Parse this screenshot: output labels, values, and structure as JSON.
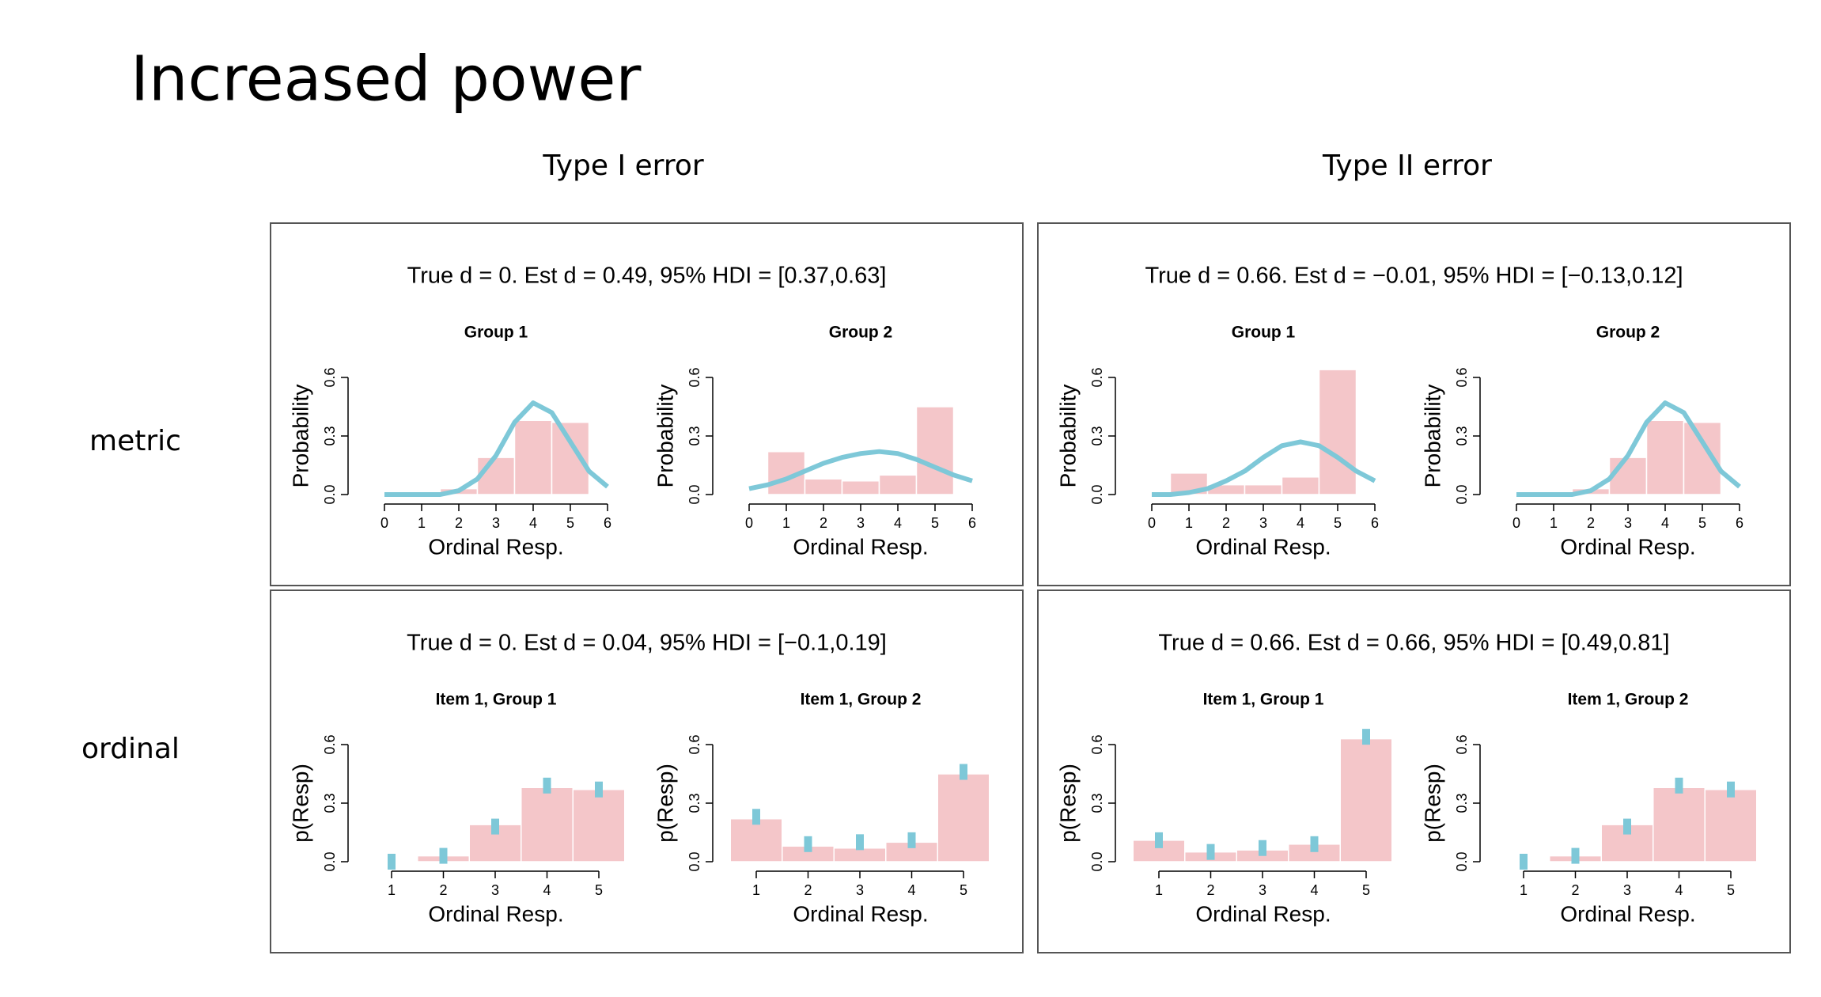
{
  "title": "Increased power",
  "columns": [
    "Type I error",
    "Type II error"
  ],
  "rows": [
    "metric",
    "ordinal"
  ],
  "panels": [
    {
      "title": "True d = 0. Est d = 0.49, 95% HDI = [0.37,0.63]"
    },
    {
      "title": "True d = 0.66. Est d = −0.01, 95% HDI = [−0.13,0.12]"
    },
    {
      "title": "True d = 0. Est d = 0.04, 95% HDI = [−0.1,0.19]"
    },
    {
      "title": "True d = 0.66. Est d = 0.66, 95% HDI = [0.49,0.81]"
    }
  ],
  "chart_data": [
    {
      "type": "histogram",
      "title": "Group 1",
      "x_label": "Ordinal Resp.",
      "y_label": "Probability",
      "bins": [
        0.5,
        1.5,
        2.5,
        3.5,
        4.5,
        5.5
      ],
      "values": [
        0,
        0.03,
        0.19,
        0.38,
        0.37
      ],
      "color": "#f4c6c9",
      "curve": {
        "color": "#7ec8d8",
        "x": [
          0,
          0.5,
          1,
          1.5,
          2,
          2.5,
          3,
          3.5,
          4,
          4.5,
          5,
          5.5,
          6
        ],
        "y": [
          0,
          0,
          0,
          0,
          0.02,
          0.08,
          0.2,
          0.37,
          0.47,
          0.42,
          0.27,
          0.12,
          0.04
        ]
      },
      "xlim": [
        0,
        6
      ],
      "xticks": [
        0,
        1,
        2,
        3,
        4,
        5,
        6
      ],
      "ylim": [
        0,
        0.7
      ],
      "yticks": [
        {
          "value": 0,
          "label": "0.0"
        },
        0.3,
        0.6
      ]
    },
    {
      "type": "histogram",
      "title": "Group 2",
      "x_label": "Ordinal Resp.",
      "y_label": "Probability",
      "bins": [
        0.5,
        1.5,
        2.5,
        3.5,
        4.5,
        5.5
      ],
      "values": [
        0.22,
        0.08,
        0.07,
        0.1,
        0.45
      ],
      "color": "#f4c6c9",
      "curve": {
        "color": "#7ec8d8",
        "x": [
          0,
          0.5,
          1,
          1.5,
          2,
          2.5,
          3,
          3.5,
          4,
          4.5,
          5,
          5.5,
          6
        ],
        "y": [
          0.03,
          0.05,
          0.08,
          0.12,
          0.16,
          0.19,
          0.21,
          0.22,
          0.21,
          0.18,
          0.14,
          0.1,
          0.07
        ]
      },
      "xlim": [
        0,
        6
      ],
      "xticks": [
        0,
        1,
        2,
        3,
        4,
        5,
        6
      ],
      "ylim": [
        0,
        0.7
      ],
      "yticks": [
        {
          "value": 0,
          "label": "0.0"
        },
        0.3,
        0.6
      ]
    },
    {
      "type": "histogram",
      "title": "Group 1",
      "x_label": "Ordinal Resp.",
      "y_label": "Probability",
      "bins": [
        0.5,
        1.5,
        2.5,
        3.5,
        4.5,
        5.5
      ],
      "values": [
        0.11,
        0.05,
        0.05,
        0.09,
        0.64
      ],
      "color": "#f4c6c9",
      "curve": {
        "color": "#7ec8d8",
        "x": [
          0,
          0.5,
          1,
          1.5,
          2,
          2.5,
          3,
          3.5,
          4,
          4.5,
          5,
          5.5,
          6
        ],
        "y": [
          0,
          0,
          0.01,
          0.03,
          0.07,
          0.12,
          0.19,
          0.25,
          0.27,
          0.25,
          0.19,
          0.12,
          0.07
        ]
      },
      "xlim": [
        0,
        6
      ],
      "xticks": [
        0,
        1,
        2,
        3,
        4,
        5,
        6
      ],
      "ylim": [
        0,
        0.7
      ],
      "yticks": [
        {
          "value": 0,
          "label": "0.0"
        },
        0.3,
        0.6
      ]
    },
    {
      "type": "histogram",
      "title": "Group 2",
      "x_label": "Ordinal Resp.",
      "y_label": "Probability",
      "bins": [
        0.5,
        1.5,
        2.5,
        3.5,
        4.5,
        5.5
      ],
      "values": [
        0,
        0.03,
        0.19,
        0.38,
        0.37
      ],
      "color": "#f4c6c9",
      "curve": {
        "color": "#7ec8d8",
        "x": [
          0,
          0.5,
          1,
          1.5,
          2,
          2.5,
          3,
          3.5,
          4,
          4.5,
          5,
          5.5,
          6
        ],
        "y": [
          0,
          0,
          0,
          0,
          0.02,
          0.08,
          0.2,
          0.37,
          0.47,
          0.42,
          0.27,
          0.12,
          0.04
        ]
      },
      "xlim": [
        0,
        6
      ],
      "xticks": [
        0,
        1,
        2,
        3,
        4,
        5,
        6
      ],
      "ylim": [
        0,
        0.7
      ],
      "yticks": [
        {
          "value": 0,
          "label": "0.0"
        },
        0.3,
        0.6
      ]
    },
    {
      "type": "bar",
      "title": "Item 1, Group 1",
      "x_label": "Ordinal Resp.",
      "y_label": "p(Resp)",
      "categories": [
        "1",
        "2",
        "3",
        "4",
        "5"
      ],
      "values": [
        0,
        0.03,
        0.19,
        0.38,
        0.37
      ],
      "color": "#f4c6c9",
      "points": [
        0,
        0.03,
        0.18,
        0.39,
        0.37
      ],
      "point_color": "#7ec8d8",
      "ylim": [
        0,
        0.7
      ],
      "yticks": [
        {
          "value": 0,
          "label": "0.0"
        },
        0.3,
        0.6
      ]
    },
    {
      "type": "bar",
      "title": "Item 1, Group 2",
      "x_label": "Ordinal Resp.",
      "y_label": "p(Resp)",
      "categories": [
        "1",
        "2",
        "3",
        "4",
        "5"
      ],
      "values": [
        0.22,
        0.08,
        0.07,
        0.1,
        0.45
      ],
      "color": "#f4c6c9",
      "points": [
        0.23,
        0.09,
        0.1,
        0.11,
        0.46
      ],
      "point_color": "#7ec8d8",
      "ylim": [
        0,
        0.7
      ],
      "yticks": [
        {
          "value": 0,
          "label": "0.0"
        },
        0.3,
        0.6
      ]
    },
    {
      "type": "bar",
      "title": "Item 1, Group 1",
      "x_label": "Ordinal Resp.",
      "y_label": "p(Resp)",
      "categories": [
        "1",
        "2",
        "3",
        "4",
        "5"
      ],
      "values": [
        0.11,
        0.05,
        0.06,
        0.09,
        0.63
      ],
      "color": "#f4c6c9",
      "points": [
        0.11,
        0.05,
        0.07,
        0.09,
        0.64
      ],
      "point_color": "#7ec8d8",
      "ylim": [
        0,
        0.7
      ],
      "yticks": [
        {
          "value": 0,
          "label": "0.0"
        },
        0.3,
        0.6
      ]
    },
    {
      "type": "bar",
      "title": "Item 1, Group 2",
      "x_label": "Ordinal Resp.",
      "y_label": "p(Resp)",
      "categories": [
        "1",
        "2",
        "3",
        "4",
        "5"
      ],
      "values": [
        0,
        0.03,
        0.19,
        0.38,
        0.37
      ],
      "color": "#f4c6c9",
      "points": [
        0,
        0.03,
        0.18,
        0.39,
        0.37
      ],
      "point_color": "#7ec8d8",
      "ylim": [
        0,
        0.7
      ],
      "yticks": [
        {
          "value": 0,
          "label": "0.0"
        },
        0.3,
        0.6
      ]
    }
  ]
}
